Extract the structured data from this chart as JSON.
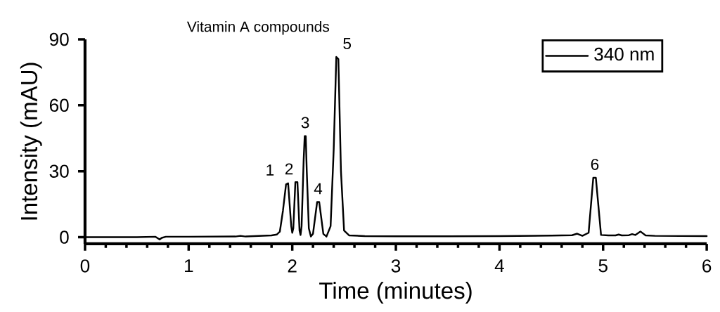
{
  "chart_data": {
    "type": "line",
    "title": "Vitamin A compounds",
    "xlabel": "Time (minutes)",
    "ylabel": "Intensity (mAU)",
    "xlim": [
      0,
      6
    ],
    "ylim": [
      -3,
      90
    ],
    "xticks": [
      0,
      1,
      2,
      3,
      4,
      5,
      6
    ],
    "yticks": [
      0,
      30,
      60,
      90
    ],
    "legend": "top right",
    "marker": "none",
    "line_style": "solid",
    "grid": false,
    "series": [
      {
        "name": "340 nm",
        "color": "#000000",
        "x": [
          0,
          0.5,
          0.68,
          0.72,
          0.74,
          0.78,
          1.0,
          1.45,
          1.5,
          1.55,
          1.8,
          1.85,
          1.88,
          1.91,
          1.94,
          1.96,
          1.99,
          2.0,
          2.01,
          2.03,
          2.05,
          2.07,
          2.08,
          2.09,
          2.11,
          2.12,
          2.13,
          2.14,
          2.16,
          2.18,
          2.2,
          2.24,
          2.26,
          2.3,
          2.33,
          2.37,
          2.4,
          2.425,
          2.445,
          2.47,
          2.5,
          2.55,
          2.7,
          3.0,
          3.5,
          4.0,
          4.5,
          4.7,
          4.75,
          4.8,
          4.86,
          4.905,
          4.93,
          4.98,
          5.05,
          5.12,
          5.15,
          5.18,
          5.25,
          5.28,
          5.31,
          5.36,
          5.41,
          5.5,
          6.0
        ],
        "values": [
          0.0,
          0.0,
          0.2,
          -1.0,
          -0.3,
          0.2,
          0.2,
          0.3,
          0.6,
          0.3,
          0.8,
          1.2,
          2.5,
          12,
          24,
          24.5,
          5,
          2,
          4,
          25,
          25,
          3,
          1,
          5,
          35,
          46,
          46,
          30,
          4,
          0.3,
          1.5,
          16,
          16,
          1.5,
          0.3,
          5,
          40,
          82,
          81,
          30,
          3,
          0.8,
          0.5,
          0.4,
          0.4,
          0.5,
          0.7,
          0.9,
          1.6,
          0.6,
          2,
          27,
          27,
          1,
          0.8,
          0.8,
          1.2,
          0.8,
          0.9,
          1.4,
          1.0,
          2.6,
          0.8,
          0.6,
          0.5
        ]
      }
    ],
    "annotations": [
      {
        "text": "1",
        "x": 1.95,
        "y": 24.5
      },
      {
        "text": "2",
        "x": 2.04,
        "y": 25
      },
      {
        "text": "3",
        "x": 2.125,
        "y": 46
      },
      {
        "text": "4",
        "x": 2.25,
        "y": 16
      },
      {
        "text": "5",
        "x": 2.435,
        "y": 82
      },
      {
        "text": "6",
        "x": 4.92,
        "y": 27
      }
    ]
  }
}
